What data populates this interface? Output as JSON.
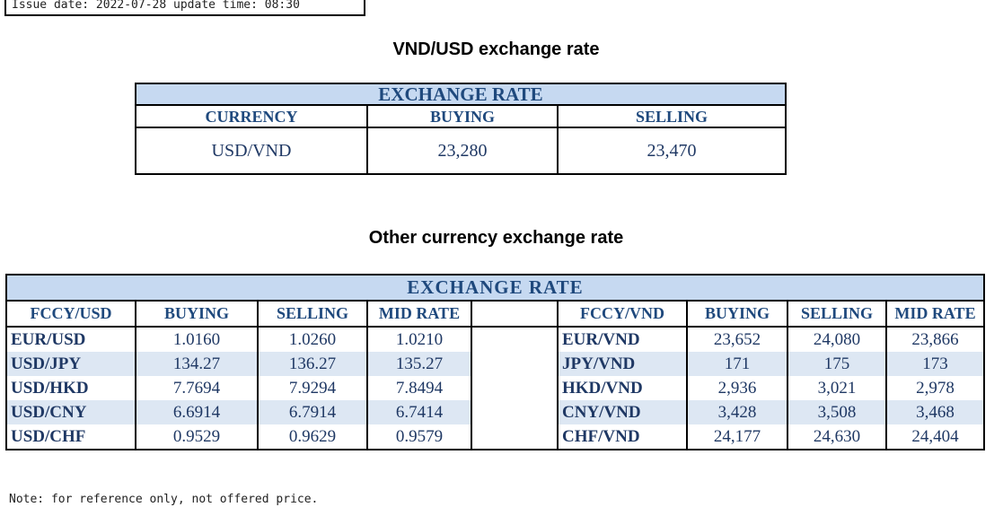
{
  "issue_line": "Issue date: 2022-07-28 update time: 08:30",
  "vnd_usd": {
    "heading": "VND/USD exchange rate",
    "table_title": "EXCHANGE RATE",
    "headers": [
      "CURRENCY",
      "BUYING",
      "SELLING"
    ],
    "row": [
      "USD/VND",
      "23,280",
      "23,470"
    ]
  },
  "other": {
    "heading": "Other currency exchange rate",
    "table_title": "EXCHANGE  RATE",
    "left_headers": [
      "FCCY/USD",
      "BUYING",
      "SELLING",
      "MID RATE"
    ],
    "right_headers": [
      "FCCY/VND",
      "BUYING",
      "SELLING",
      "MID RATE"
    ],
    "rows": [
      {
        "left": [
          "EUR/USD",
          "1.0160",
          "1.0260",
          "1.0210"
        ],
        "right": [
          "EUR/VND",
          "23,652",
          "24,080",
          "23,866"
        ]
      },
      {
        "left": [
          "USD/JPY",
          "134.27",
          "136.27",
          "135.27"
        ],
        "right": [
          "JPY/VND",
          "171",
          "175",
          "173"
        ]
      },
      {
        "left": [
          "USD/HKD",
          "7.7694",
          "7.9294",
          "7.8494"
        ],
        "right": [
          "HKD/VND",
          "2,936",
          "3,021",
          "2,978"
        ]
      },
      {
        "left": [
          "USD/CNY",
          "6.6914",
          "6.7914",
          "6.7414"
        ],
        "right": [
          "CNY/VND",
          "3,428",
          "3,508",
          "3,468"
        ]
      },
      {
        "left": [
          "USD/CHF",
          "0.9529",
          "0.9629",
          "0.9579"
        ],
        "right": [
          "CHF/VND",
          "24,177",
          "24,630",
          "24,404"
        ]
      }
    ]
  },
  "note": "Note: for reference only, not offered price.",
  "colors": {
    "header_fill": "#c6d9f1",
    "header_text": "#1f497d",
    "band_fill": "#dde7f3"
  }
}
